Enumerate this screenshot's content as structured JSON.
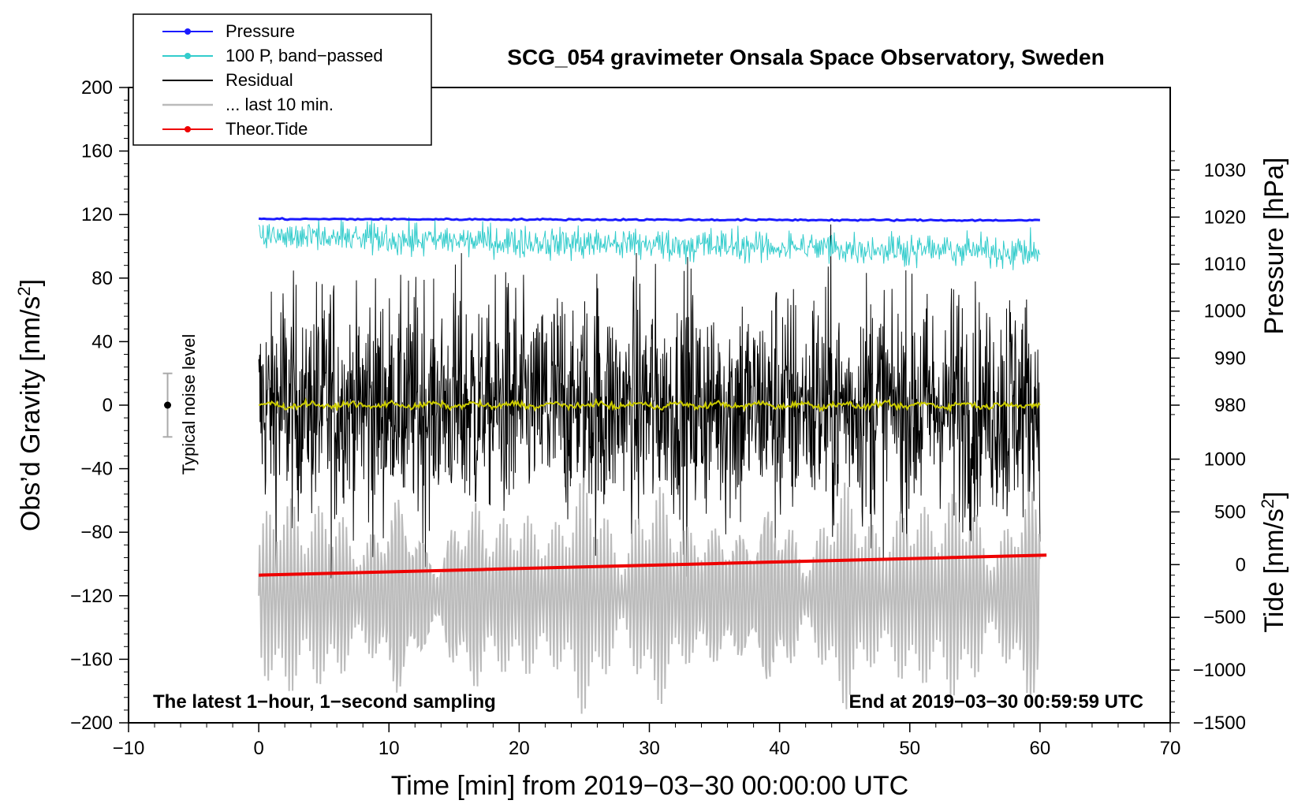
{
  "chart_data": {
    "type": "line",
    "title": "SCG_054 gravimeter Onsala Space Observatory, Sweden",
    "xlabel": "Time [min] from 2019−03−30 00:00:00 UTC",
    "ylabel_left": "Obs’d Gravity [nm/s²]",
    "ylabel_left_parts": {
      "main": "Obs’d Gravity [nm/s",
      "sup": "2",
      "end": "]"
    },
    "ylabel_right_top": "Pressure [hPa]",
    "ylabel_right_bottom": "Tide [nm/s²]",
    "ylabel_right_bottom_parts": {
      "main": "Tide [nm/s",
      "sup": "2",
      "end": "]"
    },
    "xlim": [
      -10,
      70
    ],
    "ylim": [
      -200,
      200
    ],
    "xticks": [
      -10,
      0,
      10,
      20,
      30,
      40,
      50,
      60,
      70
    ],
    "xtick_labels": [
      "−10",
      "0",
      "10",
      "20",
      "30",
      "40",
      "50",
      "60",
      "70"
    ],
    "yticks": [
      200,
      160,
      120,
      80,
      40,
      0,
      -40,
      -80,
      -120,
      -160,
      -200
    ],
    "ytick_labels": [
      "200",
      "160",
      "120",
      "80",
      "40",
      "0",
      "−40",
      "−80",
      "−120",
      "−160",
      "−200"
    ],
    "pressure_axis": {
      "ticks": [
        1030,
        1020,
        1010,
        1000,
        990,
        980
      ],
      "tick_labels": [
        "1030",
        "1020",
        "1010",
        "1000",
        "990",
        "980"
      ],
      "left_equiv": [
        [
          1030,
          148
        ],
        [
          980,
          0
        ]
      ]
    },
    "tide_axis": {
      "ticks": [
        1000,
        500,
        0,
        -500,
        -1000,
        -1500
      ],
      "tick_labels": [
        "1000",
        "500",
        "0",
        "−500",
        "−1000",
        "−1500"
      ],
      "left_equiv": [
        [
          1000,
          -34
        ],
        [
          -1500,
          -200
        ]
      ]
    },
    "series": [
      {
        "name": "Pressure",
        "color": "#1a1aff",
        "pressure_start_hPa": 1019.6,
        "pressure_end_hPa": 1019.3,
        "x_range": [
          0,
          60
        ]
      },
      {
        "name": "100 P, band−passed",
        "color": "#33cccc",
        "level": 100,
        "x_range": [
          0,
          60
        ]
      },
      {
        "name": "Residual",
        "color": "#000000",
        "level": 0,
        "x_range": [
          0,
          60
        ]
      },
      {
        "name": "... last 10 min.",
        "color": "#bbbbbb",
        "level": -120,
        "x_range": [
          0,
          60
        ]
      },
      {
        "name": "Theor.Tide",
        "color": "#ee0000",
        "tide_start": -100,
        "tide_end": 90,
        "x_range": [
          0,
          60.5
        ]
      },
      {
        "name": "Residual smoothed",
        "color": "#cccc00",
        "level": 0,
        "x_range": [
          0,
          60
        ]
      }
    ],
    "noise_bar": {
      "label": "Typical noise level",
      "x": -7,
      "center": 0,
      "half_width": 20
    },
    "notes": {
      "left": "The latest 1−hour, 1−second sampling",
      "right": "End at 2019−03−30 00:59:59 UTC"
    }
  },
  "legend": [
    {
      "label": "Pressure",
      "color": "#1a1aff",
      "marker": true
    },
    {
      "label": "100 P, band−passed",
      "color": "#33cccc",
      "marker": true
    },
    {
      "label": "Residual",
      "color": "#000000",
      "marker": false
    },
    {
      "label": "... last 10 min.",
      "color": "#bbbbbb",
      "marker": false
    },
    {
      "label": "Theor.Tide",
      "color": "#ee0000",
      "marker": true
    }
  ]
}
